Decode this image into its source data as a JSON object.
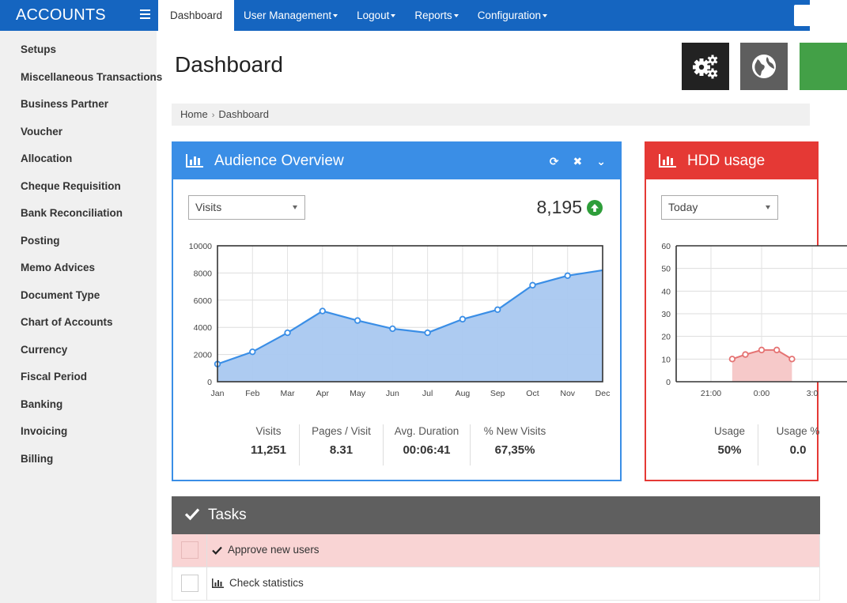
{
  "brand": "ACCOUNTS",
  "nav": [
    {
      "label": "Dashboard",
      "active": true,
      "dropdown": false
    },
    {
      "label": "User Management",
      "active": false,
      "dropdown": true
    },
    {
      "label": "Logout",
      "active": false,
      "dropdown": true
    },
    {
      "label": "Reports",
      "active": false,
      "dropdown": true
    },
    {
      "label": "Configuration",
      "active": false,
      "dropdown": true
    }
  ],
  "sidebar": {
    "items": [
      {
        "label": "Setups"
      },
      {
        "label": "Miscellaneous Transactions"
      },
      {
        "label": "Business Partner"
      },
      {
        "label": "Voucher"
      },
      {
        "label": "Allocation"
      },
      {
        "label": "Cheque Requisition"
      },
      {
        "label": "Bank Reconciliation"
      },
      {
        "label": "Posting"
      },
      {
        "label": "Memo Advices"
      },
      {
        "label": "Document Type"
      },
      {
        "label": "Chart of Accounts"
      },
      {
        "label": "Currency"
      },
      {
        "label": "Fiscal Period"
      },
      {
        "label": "Banking"
      },
      {
        "label": "Invoicing"
      },
      {
        "label": "Billing"
      }
    ]
  },
  "header": {
    "title": "Dashboard",
    "buttons": [
      {
        "icon": "gears-icon",
        "color": "#222222"
      },
      {
        "icon": "globe-icon",
        "color": "#5e5e5e"
      },
      {
        "icon": "green-action-icon",
        "color": "#43a047"
      }
    ]
  },
  "breadcrumb": {
    "home": "Home",
    "current": "Dashboard"
  },
  "audience": {
    "title": "Audience Overview",
    "select_value": "Visits",
    "total": "8,195",
    "stats": [
      {
        "label": "Visits",
        "value": "11,251"
      },
      {
        "label": "Pages / Visit",
        "value": "8.31"
      },
      {
        "label": "Avg. Duration",
        "value": "00:06:41"
      },
      {
        "label": "% New Visits",
        "value": "67,35%"
      }
    ]
  },
  "hdd": {
    "title": "HDD usage",
    "select_value": "Today",
    "stats": [
      {
        "label": "Usage",
        "value": "50%"
      },
      {
        "label": "Usage %",
        "value": "0.0"
      }
    ]
  },
  "tasks": {
    "title": "Tasks",
    "items": [
      {
        "text": "Approve new users",
        "icon": "check-icon",
        "done": true
      },
      {
        "text": "Check statistics",
        "icon": "bar-chart-icon",
        "done": false
      }
    ]
  },
  "chart_data": [
    {
      "type": "area",
      "title": "Audience Overview",
      "categories": [
        "Jan",
        "Feb",
        "Mar",
        "Apr",
        "May",
        "Jun",
        "Jul",
        "Aug",
        "Sep",
        "Oct",
        "Nov",
        "Dec"
      ],
      "series": [
        {
          "values": [
            1300,
            2200,
            3600,
            5200,
            4500,
            3900,
            3600,
            4600,
            5300,
            7100,
            7800,
            8200
          ]
        }
      ],
      "ylim": [
        0,
        10000
      ],
      "yticks": [
        0,
        2000,
        4000,
        6000,
        8000,
        10000
      ],
      "grid": true,
      "color": "#3a8ee6",
      "fill": "#a9c8f0"
    },
    {
      "type": "area",
      "title": "HDD usage",
      "categories": [
        "21:00",
        "0:00",
        "3:0"
      ],
      "series": [
        {
          "x": [
            0.42,
            0.68,
            1.0,
            1.3,
            1.6
          ],
          "values": [
            10,
            12,
            14,
            14,
            10
          ]
        }
      ],
      "ylim": [
        0,
        60
      ],
      "yticks": [
        0,
        10,
        20,
        30,
        40,
        50,
        60
      ],
      "grid": true,
      "color": "#e57373",
      "fill": "#f6c9c9"
    }
  ]
}
